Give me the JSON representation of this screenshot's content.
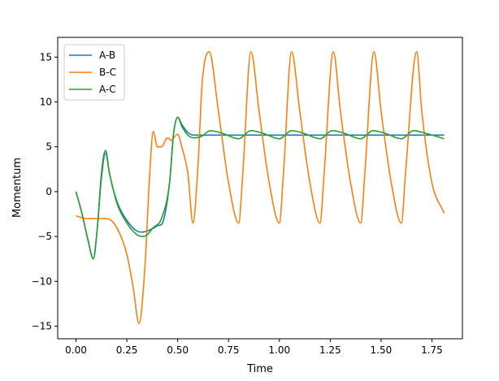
{
  "chart_data": {
    "type": "line",
    "title": "",
    "xlabel": "Time",
    "ylabel": "Momentum",
    "xlim": [
      -0.09,
      1.9
    ],
    "ylim": [
      -16.4,
      17.2
    ],
    "xticks": [
      0.0,
      0.25,
      0.5,
      0.75,
      1.0,
      1.25,
      1.5,
      1.75
    ],
    "xtick_labels": [
      "0.00",
      "0.25",
      "0.50",
      "0.75",
      "1.00",
      "1.25",
      "1.50",
      "1.75"
    ],
    "yticks": [
      -15,
      -10,
      -5,
      0,
      5,
      10,
      15
    ],
    "ytick_labels": [
      "−15",
      "−10",
      "−5",
      "0",
      "5",
      "10",
      "15"
    ],
    "grid": false,
    "legend_position": "top-left",
    "series": [
      {
        "name": "A-B",
        "color": "#1f77b4",
        "x": [
          0.0,
          0.03,
          0.06,
          0.085,
          0.105,
          0.125,
          0.145,
          0.165,
          0.2,
          0.25,
          0.3,
          0.33,
          0.36,
          0.4,
          0.43,
          0.46,
          0.48,
          0.5,
          0.52,
          0.55,
          0.58,
          0.6,
          0.65,
          0.7,
          0.8,
          1.0,
          1.2,
          1.4,
          1.6,
          1.81
        ],
        "y": [
          0.0,
          -2.5,
          -5.5,
          -7.5,
          -4.0,
          2.0,
          4.6,
          2.0,
          -1.0,
          -3.2,
          -4.4,
          -4.5,
          -4.3,
          -3.8,
          -3.2,
          1.0,
          6.5,
          8.3,
          7.5,
          6.6,
          6.3,
          6.3,
          6.3,
          6.3,
          6.3,
          6.3,
          6.3,
          6.3,
          6.3,
          6.3
        ]
      },
      {
        "name": "B-C",
        "color": "#ff7f0e",
        "x": [
          0.0,
          0.05,
          0.1,
          0.15,
          0.2,
          0.25,
          0.28,
          0.31,
          0.34,
          0.36,
          0.38,
          0.4,
          0.42,
          0.45,
          0.47,
          0.48,
          0.5,
          0.52,
          0.55,
          0.575,
          0.6,
          0.62,
          0.655,
          0.7,
          0.75,
          0.8,
          0.82,
          0.86,
          0.9,
          0.95,
          1.0,
          1.02,
          1.06,
          1.1,
          1.15,
          1.2,
          1.22,
          1.265,
          1.3,
          1.35,
          1.4,
          1.42,
          1.465,
          1.5,
          1.55,
          1.6,
          1.62,
          1.675,
          1.7,
          1.75,
          1.81
        ],
        "y": [
          -2.7,
          -3.0,
          -3.0,
          -3.0,
          -4.0,
          -7.0,
          -10.5,
          -14.7,
          -8.0,
          1.0,
          6.7,
          5.0,
          5.0,
          6.0,
          5.7,
          6.0,
          6.4,
          5.0,
          2.0,
          -3.5,
          3.0,
          12.0,
          15.6,
          9.0,
          1.0,
          -3.5,
          2.0,
          15.6,
          9.0,
          1.0,
          -3.5,
          2.0,
          15.6,
          9.0,
          1.0,
          -3.5,
          2.0,
          15.6,
          9.0,
          1.0,
          -3.5,
          2.0,
          15.6,
          9.0,
          1.0,
          -3.5,
          2.0,
          15.6,
          9.0,
          1.0,
          -2.4
        ]
      },
      {
        "name": "A-C",
        "color": "#2ca02c",
        "x": [
          0.0,
          0.03,
          0.06,
          0.085,
          0.105,
          0.125,
          0.145,
          0.165,
          0.2,
          0.25,
          0.3,
          0.33,
          0.35,
          0.38,
          0.42,
          0.46,
          0.48,
          0.5,
          0.52,
          0.55,
          0.58,
          0.62,
          0.66,
          0.72,
          0.8,
          0.86,
          0.92,
          1.0,
          1.06,
          1.12,
          1.2,
          1.26,
          1.32,
          1.4,
          1.46,
          1.52,
          1.6,
          1.66,
          1.72,
          1.81
        ],
        "y": [
          0.0,
          -2.5,
          -5.5,
          -7.5,
          -4.0,
          1.5,
          4.3,
          2.0,
          -1.2,
          -3.5,
          -4.8,
          -5.0,
          -4.8,
          -4.0,
          -3.0,
          1.0,
          6.5,
          8.3,
          7.3,
          6.3,
          6.0,
          6.2,
          6.8,
          6.5,
          5.9,
          6.8,
          6.5,
          5.9,
          6.8,
          6.5,
          5.9,
          6.8,
          6.5,
          5.9,
          6.8,
          6.5,
          5.9,
          6.8,
          6.5,
          5.9
        ]
      }
    ]
  }
}
